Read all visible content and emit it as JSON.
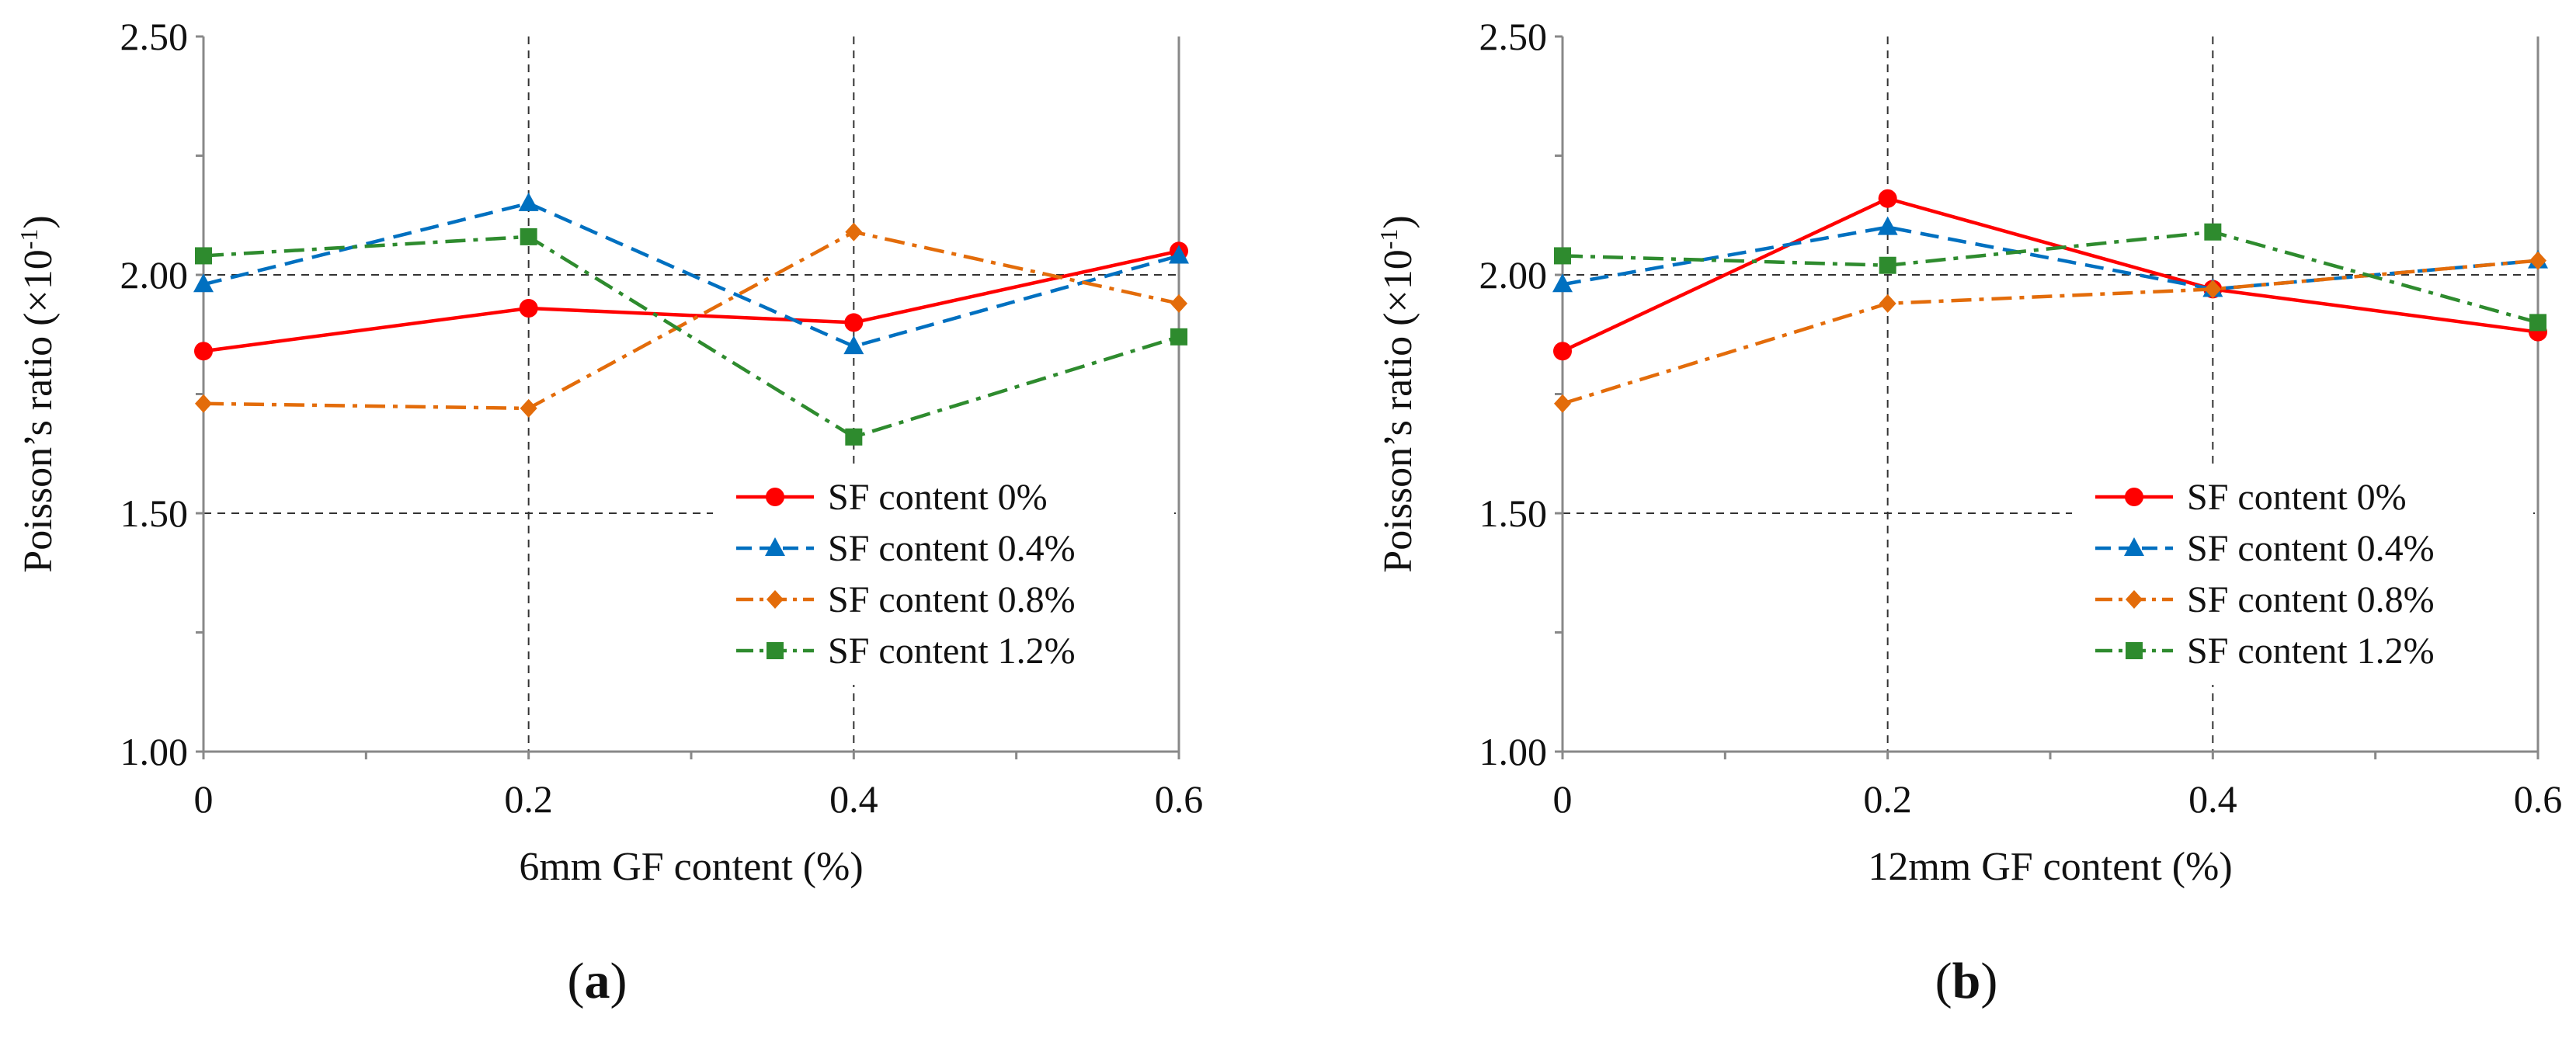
{
  "colors": {
    "series": [
      "#ff0000",
      "#0070c0",
      "#e36c0a",
      "#2e8b2e"
    ],
    "axis": "#888888",
    "grid": "#333333"
  },
  "chart_data": [
    {
      "type": "line",
      "panel_label": "a",
      "xlabel": "6mm GF content (%)",
      "ylabel": "Poisson’s ratio (×10",
      "ylabel_sup": "-1",
      "ylabel_close": ")",
      "x": [
        0,
        0.2,
        0.4,
        0.6
      ],
      "xticks": [
        "0",
        "0.2",
        "0.4",
        "0.6"
      ],
      "xlim": [
        0,
        0.6
      ],
      "ylim": [
        1.0,
        2.5
      ],
      "yticks": [
        "1.00",
        "1.50",
        "2.00",
        "2.50"
      ],
      "grid": true,
      "legend_position": "lower-right",
      "series": [
        {
          "name": "SF content 0%",
          "marker": "circle",
          "dash": "solid",
          "values": [
            1.84,
            1.93,
            1.9,
            2.05
          ]
        },
        {
          "name": "SF content 0.4%",
          "marker": "triangle",
          "dash": "dashed",
          "values": [
            1.98,
            2.15,
            1.85,
            2.04
          ]
        },
        {
          "name": "SF content 0.8%",
          "marker": "diamond",
          "dash": "dash-dot",
          "values": [
            1.73,
            1.72,
            2.09,
            1.94
          ]
        },
        {
          "name": "SF content 1.2%",
          "marker": "square",
          "dash": "dash-dot",
          "values": [
            2.04,
            2.08,
            1.66,
            1.87
          ]
        }
      ]
    },
    {
      "type": "line",
      "panel_label": "b",
      "xlabel": "12mm GF content (%)",
      "ylabel": "Poisson’s ratio (×10",
      "ylabel_sup": "-1",
      "ylabel_close": ")",
      "x": [
        0,
        0.2,
        0.4,
        0.6
      ],
      "xticks": [
        "0",
        "0.2",
        "0.4",
        "0.6"
      ],
      "xlim": [
        0,
        0.6
      ],
      "ylim": [
        1.0,
        2.5
      ],
      "yticks": [
        "1.00",
        "1.50",
        "2.00",
        "2.50"
      ],
      "grid": true,
      "legend_position": "lower-right",
      "series": [
        {
          "name": "SF content 0%",
          "marker": "circle",
          "dash": "solid",
          "values": [
            1.84,
            2.16,
            1.97,
            1.88
          ]
        },
        {
          "name": "SF content 0.4%",
          "marker": "triangle",
          "dash": "dashed",
          "values": [
            1.98,
            2.1,
            1.97,
            2.03
          ]
        },
        {
          "name": "SF content 0.8%",
          "marker": "diamond",
          "dash": "dash-dot",
          "values": [
            1.73,
            1.94,
            1.97,
            2.03
          ]
        },
        {
          "name": "SF content 1.2%",
          "marker": "square",
          "dash": "dash-dot",
          "values": [
            2.04,
            2.02,
            2.09,
            1.9
          ]
        }
      ]
    }
  ]
}
